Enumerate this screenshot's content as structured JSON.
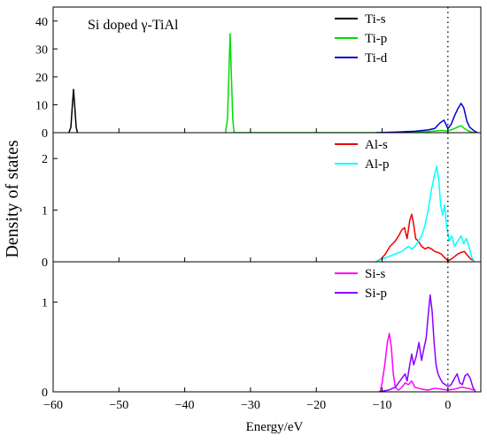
{
  "chart_data": {
    "type": "line",
    "annotation": "Si doped γ-TiAl",
    "xlabel": "Energy/eV",
    "ylabel": "Density of states",
    "xlim": [
      -60,
      5
    ],
    "xticks": [
      -60,
      -50,
      -40,
      -30,
      -20,
      -10,
      0
    ],
    "fermi_level": 0,
    "legend_position": "top-right",
    "panels": [
      {
        "ylim": [
          0,
          45
        ],
        "yticks": [
          0,
          10,
          20,
          30,
          40
        ],
        "series": [
          {
            "name": "Ti-s",
            "color": "#000000",
            "points": [
              [
                -57.6,
                0
              ],
              [
                -57.3,
                2
              ],
              [
                -57.1,
                9
              ],
              [
                -56.9,
                15.5
              ],
              [
                -56.7,
                9
              ],
              [
                -56.5,
                2
              ],
              [
                -56.3,
                0
              ]
            ]
          },
          {
            "name": "Ti-p",
            "color": "#00dd00",
            "points": [
              [
                -33.8,
                0
              ],
              [
                -33.5,
                5
              ],
              [
                -33.3,
                20
              ],
              [
                -33.1,
                35.5
              ],
              [
                -32.9,
                20
              ],
              [
                -32.7,
                5
              ],
              [
                -32.5,
                0
              ],
              [
                -10,
                0
              ],
              [
                -6,
                0.3
              ],
              [
                -3,
                0.4
              ],
              [
                -1,
                0.8
              ],
              [
                0,
                0.6
              ],
              [
                1,
                1.5
              ],
              [
                2,
                2.5
              ],
              [
                2.5,
                1.5
              ],
              [
                3,
                0.8
              ],
              [
                3.5,
                0.3
              ],
              [
                4,
                0
              ]
            ]
          },
          {
            "name": "Ti-d",
            "color": "#0000cc",
            "points": [
              [
                -11,
                0
              ],
              [
                -8,
                0.2
              ],
              [
                -5,
                0.5
              ],
              [
                -3,
                1
              ],
              [
                -2,
                1.5
              ],
              [
                -1.2,
                3.5
              ],
              [
                -0.6,
                4.5
              ],
              [
                0,
                1.5
              ],
              [
                0.5,
                3
              ],
              [
                1,
                6
              ],
              [
                1.5,
                8.5
              ],
              [
                2,
                10.5
              ],
              [
                2.4,
                9
              ],
              [
                2.9,
                4
              ],
              [
                3.3,
                2
              ],
              [
                3.8,
                1
              ],
              [
                4.2,
                0.3
              ],
              [
                4.5,
                0
              ]
            ]
          }
        ]
      },
      {
        "ylim": [
          0,
          2.5
        ],
        "yticks": [
          0,
          1,
          2
        ],
        "series": [
          {
            "name": "Al-s",
            "color": "#ee0000",
            "points": [
              [
                -11,
                0
              ],
              [
                -10.2,
                0.05
              ],
              [
                -9.5,
                0.15
              ],
              [
                -8.8,
                0.3
              ],
              [
                -8,
                0.4
              ],
              [
                -7.5,
                0.5
              ],
              [
                -7,
                0.62
              ],
              [
                -6.6,
                0.66
              ],
              [
                -6.2,
                0.45
              ],
              [
                -5.8,
                0.8
              ],
              [
                -5.5,
                0.92
              ],
              [
                -5.2,
                0.72
              ],
              [
                -4.9,
                0.45
              ],
              [
                -4.5,
                0.4
              ],
              [
                -4,
                0.3
              ],
              [
                -3.5,
                0.25
              ],
              [
                -3,
                0.28
              ],
              [
                -2.5,
                0.25
              ],
              [
                -2,
                0.2
              ],
              [
                -1.5,
                0.18
              ],
              [
                -1,
                0.15
              ],
              [
                -0.5,
                0.08
              ],
              [
                0,
                0.02
              ],
              [
                0.5,
                0.05
              ],
              [
                1,
                0.1
              ],
              [
                1.5,
                0.15
              ],
              [
                2,
                0.18
              ],
              [
                2.5,
                0.2
              ],
              [
                3,
                0.12
              ],
              [
                3.5,
                0.05
              ],
              [
                4,
                0.02
              ]
            ]
          },
          {
            "name": "Al-p",
            "color": "#00ffff",
            "points": [
              [
                -11,
                0
              ],
              [
                -10,
                0.05
              ],
              [
                -9,
                0.1
              ],
              [
                -8,
                0.15
              ],
              [
                -7,
                0.2
              ],
              [
                -6.5,
                0.25
              ],
              [
                -6,
                0.3
              ],
              [
                -5.5,
                0.25
              ],
              [
                -5,
                0.3
              ],
              [
                -4.5,
                0.4
              ],
              [
                -4,
                0.5
              ],
              [
                -3.5,
                0.7
              ],
              [
                -3,
                1
              ],
              [
                -2.5,
                1.4
              ],
              [
                -2,
                1.7
              ],
              [
                -1.7,
                1.85
              ],
              [
                -1.4,
                1.6
              ],
              [
                -1.1,
                1.1
              ],
              [
                -0.8,
                0.9
              ],
              [
                -0.5,
                1.1
              ],
              [
                -0.2,
                0.7
              ],
              [
                0.2,
                0.4
              ],
              [
                0.6,
                0.5
              ],
              [
                1,
                0.3
              ],
              [
                1.5,
                0.4
              ],
              [
                2,
                0.5
              ],
              [
                2.4,
                0.35
              ],
              [
                2.8,
                0.45
              ],
              [
                3.2,
                0.3
              ],
              [
                3.6,
                0.1
              ],
              [
                4,
                0
              ]
            ]
          }
        ]
      },
      {
        "ylim": [
          0,
          1.45
        ],
        "yticks": [
          0,
          1
        ],
        "series": [
          {
            "name": "Si-s",
            "color": "#ff00ff",
            "points": [
              [
                -10.3,
                0
              ],
              [
                -10,
                0.1
              ],
              [
                -9.6,
                0.3
              ],
              [
                -9.2,
                0.55
              ],
              [
                -8.9,
                0.65
              ],
              [
                -8.6,
                0.5
              ],
              [
                -8.3,
                0.2
              ],
              [
                -8,
                0.05
              ],
              [
                -7.5,
                0.02
              ],
              [
                -7,
                0.05
              ],
              [
                -6.5,
                0.1
              ],
              [
                -6,
                0.08
              ],
              [
                -5.5,
                0.12
              ],
              [
                -5,
                0.05
              ],
              [
                -4,
                0.03
              ],
              [
                -3,
                0.02
              ],
              [
                -2,
                0.04
              ],
              [
                -1,
                0.03
              ],
              [
                0,
                0.02
              ],
              [
                1,
                0.03
              ],
              [
                2,
                0.05
              ],
              [
                3,
                0.04
              ],
              [
                4,
                0.02
              ]
            ]
          },
          {
            "name": "Si-p",
            "color": "#8800ff",
            "points": [
              [
                -10.5,
                0
              ],
              [
                -9,
                0.02
              ],
              [
                -8,
                0.05
              ],
              [
                -7.5,
                0.1
              ],
              [
                -7,
                0.15
              ],
              [
                -6.5,
                0.2
              ],
              [
                -6.2,
                0.12
              ],
              [
                -5.8,
                0.3
              ],
              [
                -5.5,
                0.42
              ],
              [
                -5.2,
                0.3
              ],
              [
                -4.8,
                0.4
              ],
              [
                -4.4,
                0.55
              ],
              [
                -4,
                0.35
              ],
              [
                -3.6,
                0.5
              ],
              [
                -3.3,
                0.6
              ],
              [
                -3,
                0.85
              ],
              [
                -2.7,
                1.08
              ],
              [
                -2.4,
                0.9
              ],
              [
                -2.1,
                0.55
              ],
              [
                -1.8,
                0.3
              ],
              [
                -1.5,
                0.2
              ],
              [
                -1.2,
                0.15
              ],
              [
                -0.8,
                0.1
              ],
              [
                -0.4,
                0.08
              ],
              [
                0,
                0.06
              ],
              [
                0.5,
                0.08
              ],
              [
                1,
                0.15
              ],
              [
                1.4,
                0.2
              ],
              [
                1.8,
                0.1
              ],
              [
                2.2,
                0.08
              ],
              [
                2.6,
                0.18
              ],
              [
                3,
                0.2
              ],
              [
                3.4,
                0.15
              ],
              [
                3.8,
                0.05
              ],
              [
                4.2,
                0
              ]
            ]
          }
        ]
      }
    ]
  }
}
